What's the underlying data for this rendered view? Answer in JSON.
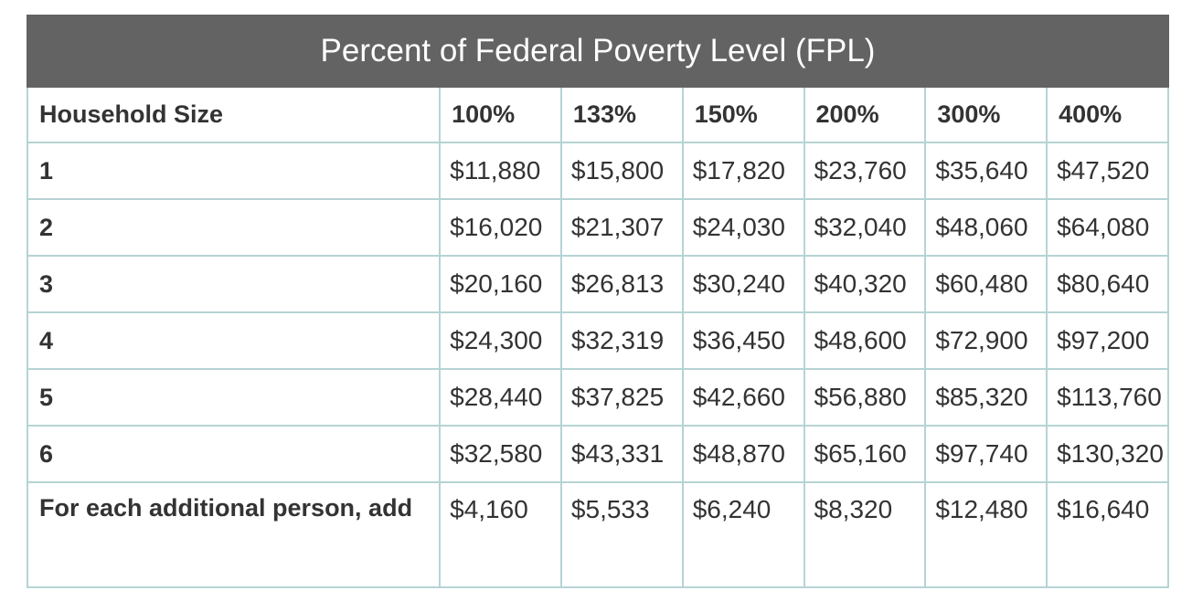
{
  "table": {
    "title": "Percent of Federal Poverty Level (FPL)",
    "headers": [
      "Household Size",
      "100%",
      "133%",
      "150%",
      "200%",
      "300%",
      "400%"
    ],
    "rows": [
      [
        "1",
        "$11,880",
        "$15,800",
        "$17,820",
        "$23,760",
        "$35,640",
        "$47,520"
      ],
      [
        "2",
        "$16,020",
        "$21,307",
        "$24,030",
        "$32,040",
        "$48,060",
        "$64,080"
      ],
      [
        "3",
        "$20,160",
        "$26,813",
        "$30,240",
        "$40,320",
        "$60,480",
        "$80,640"
      ],
      [
        "4",
        "$24,300",
        "$32,319",
        "$36,450",
        "$48,600",
        "$72,900",
        "$97,200"
      ],
      [
        "5",
        "$28,440",
        "$37,825",
        "$42,660",
        "$56,880",
        "$85,320",
        "$113,760"
      ],
      [
        "6",
        "$32,580",
        "$43,331",
        "$48,870",
        "$65,160",
        "$97,740",
        "$130,320"
      ],
      [
        "For each additional person, add",
        "$4,160",
        "$5,533",
        "$6,240",
        "$8,320",
        "$12,480",
        "$16,640"
      ]
    ]
  },
  "colors": {
    "title_bg": "#636363",
    "title_text": "#ffffff",
    "border": "#b6d3d4",
    "text": "#333333"
  }
}
